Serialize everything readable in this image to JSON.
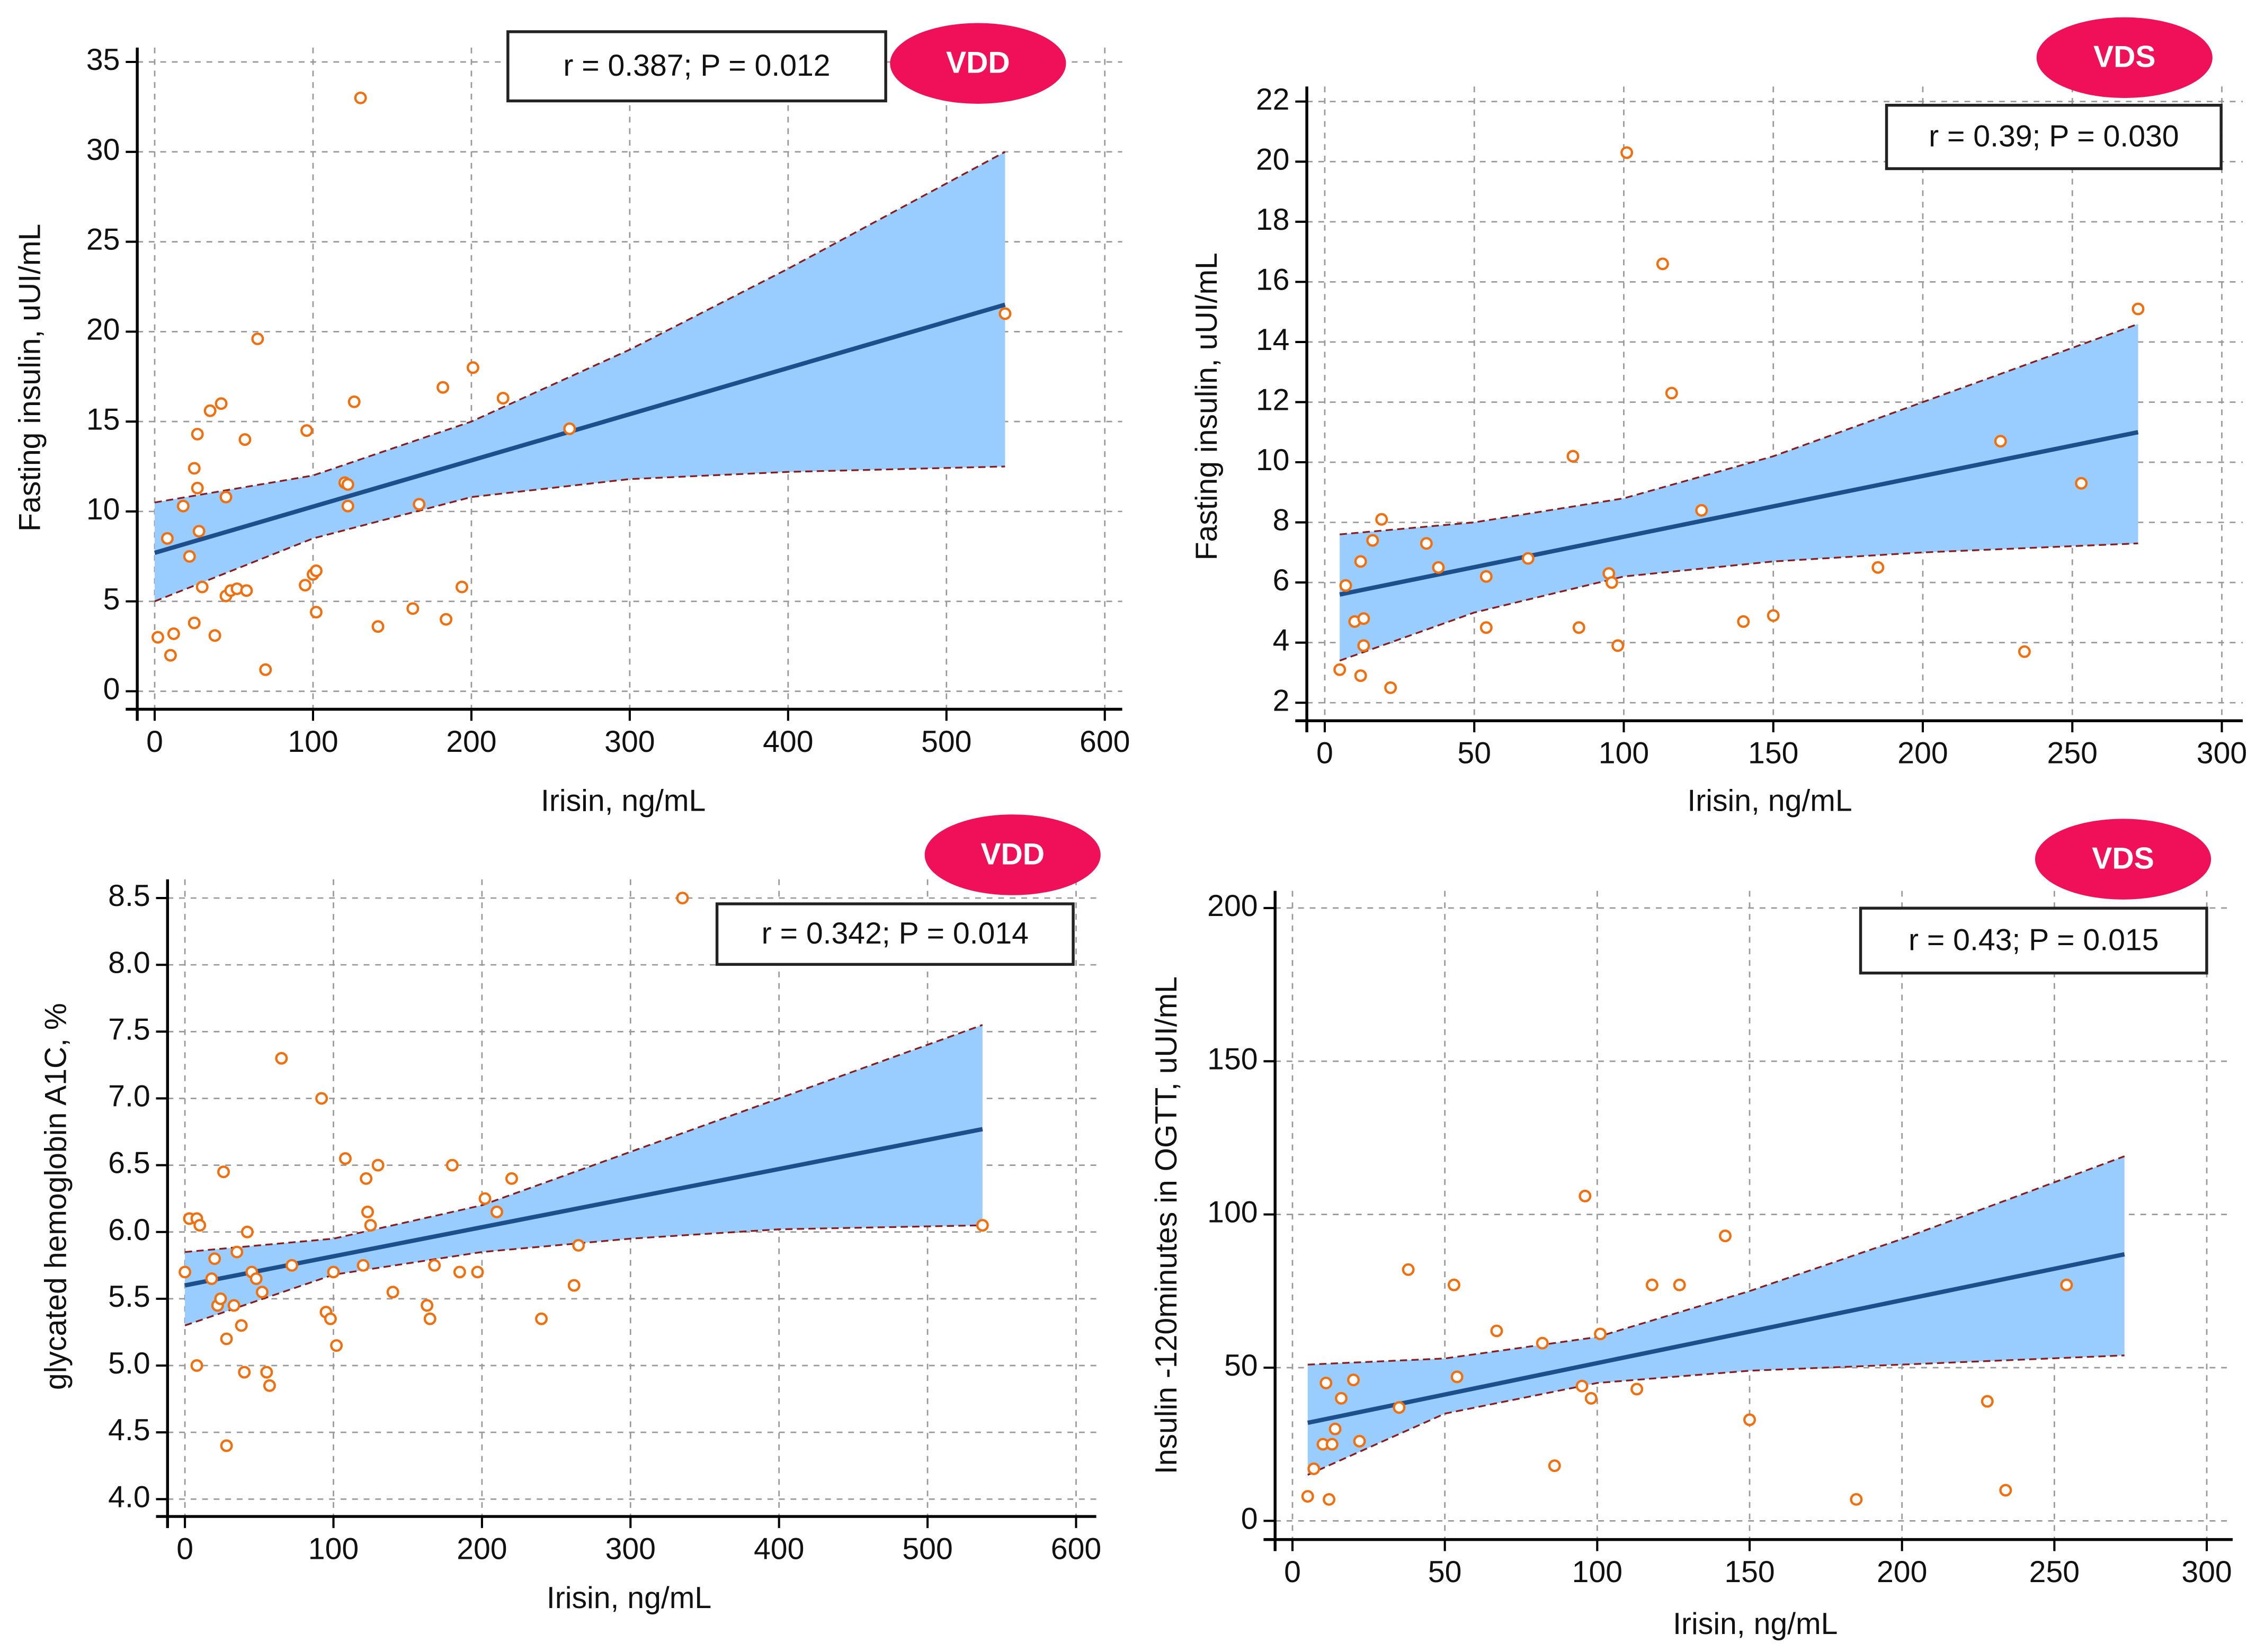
{
  "chart_data": [
    {
      "type": "scatter",
      "x_label": "Irisin, ng/mL",
      "y_label": "Fasting insulin, uUI/mL",
      "annotation": "r = 0.387; P = 0.012",
      "badge": "VDD",
      "x": [
        2,
        8,
        10,
        12,
        18,
        22,
        25,
        25,
        27,
        27,
        28,
        30,
        35,
        38,
        42,
        45,
        45,
        48,
        52,
        57,
        58,
        65,
        70,
        95,
        96,
        100,
        102,
        102,
        120,
        122,
        122,
        126,
        130,
        141,
        163,
        167,
        182,
        184,
        194,
        201,
        220,
        262,
        537
      ],
      "y": [
        3,
        8.5,
        2,
        3.2,
        10.3,
        7.5,
        12.4,
        3.8,
        14.3,
        11.3,
        8.9,
        5.8,
        15.6,
        3.1,
        16,
        10.8,
        5.3,
        5.6,
        5.7,
        14,
        5.6,
        19.6,
        1.2,
        5.9,
        14.5,
        6.5,
        6.7,
        4.4,
        11.6,
        11.5,
        10.3,
        16.1,
        33,
        3.6,
        4.6,
        10.4,
        16.9,
        4,
        5.8,
        18,
        16.3,
        14.6,
        21
      ],
      "fit": {
        "x": [
          0,
          537
        ],
        "y": [
          7.7,
          21.5
        ]
      },
      "ci": {
        "x": [
          0,
          100,
          200,
          300,
          400,
          537
        ],
        "upper": [
          10.5,
          12,
          15,
          19,
          23.5,
          30
        ],
        "lower": [
          5,
          8.5,
          10.8,
          11.8,
          12.2,
          12.5
        ]
      },
      "xlim": [
        -11,
        611
      ],
      "ylim": [
        -1,
        35.8
      ],
      "xticks": [
        0,
        100,
        200,
        300,
        400,
        500,
        600
      ],
      "yticks": [
        0,
        5,
        10,
        15,
        20,
        25,
        30,
        35
      ],
      "grid": true,
      "color": "#f07010",
      "fit_color": "#1f4e8c",
      "band_color": "#99ccff",
      "badge_color": "#f0105a"
    },
    {
      "type": "scatter",
      "x_label": "Irisin, ng/mL",
      "y_label": "Fasting insulin, uUI/mL",
      "annotation": "r = 0.39; P = 0.030",
      "badge": "VDS",
      "x": [
        5,
        7,
        10,
        12,
        12,
        13,
        13,
        16,
        19,
        22,
        34,
        38,
        54,
        54,
        68,
        83,
        85,
        95,
        96,
        98,
        101,
        113,
        116,
        126,
        140,
        150,
        185,
        226,
        234,
        253,
        272
      ],
      "y": [
        3.1,
        5.9,
        4.7,
        2.9,
        6.7,
        3.9,
        4.8,
        7.4,
        8.1,
        2.5,
        7.3,
        6.5,
        6.2,
        4.5,
        6.8,
        10.2,
        4.5,
        6.3,
        6,
        3.9,
        20.3,
        16.6,
        12.3,
        8.4,
        4.7,
        4.9,
        6.5,
        10.7,
        3.7,
        9.3,
        15.1
      ],
      "fit": {
        "x": [
          5,
          272
        ],
        "y": [
          5.6,
          11
        ]
      },
      "ci": {
        "x": [
          5,
          50,
          100,
          150,
          200,
          272
        ],
        "upper": [
          7.6,
          8,
          8.8,
          10.2,
          12,
          14.6
        ],
        "lower": [
          3.4,
          5,
          6.2,
          6.7,
          7,
          7.3
        ]
      },
      "xlim": [
        -6,
        307
      ],
      "ylim": [
        1.4,
        22.5
      ],
      "xticks": [
        0,
        50,
        100,
        150,
        200,
        250,
        300
      ],
      "yticks": [
        2,
        4,
        6,
        8,
        10,
        12,
        14,
        16,
        18,
        20,
        22
      ],
      "grid": true,
      "color": "#f07010",
      "fit_color": "#1f4e8c",
      "band_color": "#99ccff",
      "badge_color": "#f0105a"
    },
    {
      "type": "scatter",
      "x_label": "Irisin, ng/mL",
      "y_label": "glycated hemoglobin A1C, %",
      "annotation": "r = 0.342; P = 0.014",
      "badge": "VDD",
      "x": [
        0,
        3,
        8,
        8,
        10,
        18,
        20,
        22,
        24,
        26,
        28,
        28,
        33,
        35,
        38,
        40,
        42,
        45,
        48,
        52,
        55,
        57,
        65,
        72,
        92,
        95,
        98,
        100,
        102,
        108,
        120,
        122,
        123,
        125,
        130,
        140,
        163,
        165,
        168,
        180,
        185,
        197,
        202,
        210,
        220,
        240,
        262,
        265,
        335,
        537
      ],
      "y": [
        5.7,
        6.1,
        6.1,
        5.0,
        6.05,
        5.65,
        5.8,
        5.45,
        5.5,
        6.45,
        5.2,
        4.4,
        5.45,
        5.85,
        5.3,
        4.95,
        6.0,
        5.7,
        5.65,
        5.55,
        4.95,
        4.85,
        7.3,
        5.75,
        7.0,
        5.4,
        5.35,
        5.7,
        5.15,
        6.55,
        5.75,
        6.4,
        6.15,
        6.05,
        6.5,
        5.55,
        5.45,
        5.35,
        5.75,
        6.5,
        5.7,
        5.7,
        6.25,
        6.15,
        6.4,
        5.35,
        5.6,
        5.9,
        8.5,
        6.05
      ],
      "fit": {
        "x": [
          0,
          537
        ],
        "y": [
          5.6,
          6.77
        ]
      },
      "ci": {
        "x": [
          0,
          100,
          200,
          300,
          400,
          537
        ],
        "upper": [
          5.85,
          5.95,
          6.2,
          6.6,
          7.0,
          7.55
        ],
        "lower": [
          5.3,
          5.68,
          5.85,
          5.95,
          6.02,
          6.05
        ]
      },
      "xlim": [
        -11.7,
        613.6
      ],
      "ylim": [
        3.87,
        8.64
      ],
      "xticks": [
        0,
        100,
        200,
        300,
        400,
        500,
        600
      ],
      "yticks": [
        {
          "value": 4,
          "label": "4.0"
        },
        4.5,
        {
          "value": 5,
          "label": "5.0"
        },
        5.5,
        {
          "value": 6,
          "label": "6.0"
        },
        6.5,
        {
          "value": 7,
          "label": "7.0"
        },
        7.5,
        {
          "value": 8,
          "label": "8.0"
        },
        8.5
      ],
      "grid": true,
      "color": "#f07010",
      "fit_color": "#1f4e8c",
      "band_color": "#99ccff",
      "badge_color": "#f0105a"
    },
    {
      "type": "scatter",
      "x_label": "Irisin, ng/mL",
      "y_label": "Insulin -120minutes in OGTT, uUI/mL",
      "annotation": "r = 0.43; P = 0.015",
      "badge": "VDS",
      "x": [
        5,
        7,
        10,
        11,
        12,
        13,
        14,
        16,
        20,
        22,
        35,
        38,
        53,
        54,
        67,
        82,
        86,
        95,
        96,
        98,
        101,
        113,
        118,
        127,
        142,
        150,
        185,
        228,
        234,
        254
      ],
      "y": [
        8,
        17,
        25,
        45,
        7,
        25,
        30,
        40,
        46,
        26,
        37,
        82,
        77,
        47,
        62,
        58,
        18,
        44,
        106,
        40,
        61,
        43,
        77,
        77,
        93,
        33,
        7,
        39,
        10,
        77
      ],
      "fit": {
        "x": [
          5,
          273
        ],
        "y": [
          32,
          87
        ]
      },
      "ci": {
        "x": [
          5,
          50,
          100,
          150,
          200,
          273
        ],
        "upper": [
          51,
          53,
          60,
          75,
          92,
          119
        ],
        "lower": [
          15,
          35,
          45,
          49,
          51,
          54
        ]
      },
      "xlim": [
        -5.7,
        308.5
      ],
      "ylim": [
        -6.1,
        205.6
      ],
      "xticks": [
        0,
        50,
        100,
        150,
        200,
        250,
        300
      ],
      "yticks": [
        0,
        50,
        100,
        150,
        200
      ],
      "grid": true,
      "color": "#f07010",
      "fit_color": "#1f4e8c",
      "band_color": "#99ccff",
      "badge_color": "#f0105a"
    }
  ]
}
